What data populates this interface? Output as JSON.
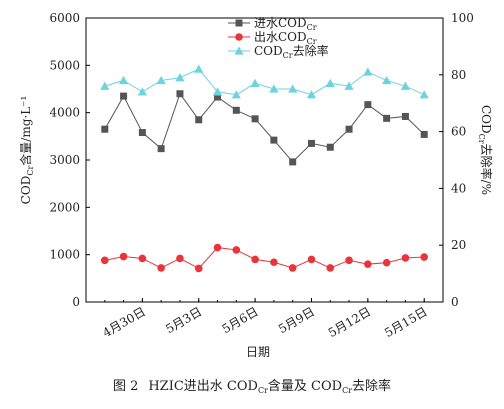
{
  "caption": {
    "prefix": "图 2",
    "text_a": "HZIC进出水 COD",
    "sub_a": "Cr",
    "text_b": "含量及 COD",
    "sub_b": "Cr",
    "text_c": "去除率"
  },
  "chart_data": {
    "type": "line",
    "xlabel": "日期",
    "ylabel_left": {
      "main": "COD",
      "sub": "Cr",
      "rest": "含量/mg·L⁻¹"
    },
    "ylabel_right": {
      "main": "COD",
      "sub": "Cr",
      "rest": "去除率/%"
    },
    "ylim_left": [
      0,
      6000
    ],
    "ylim_right": [
      0,
      100
    ],
    "yticks_left": [
      "0",
      "1000",
      "2000",
      "3000",
      "4000",
      "5000",
      "6000"
    ],
    "yticks_right": [
      "0",
      "20",
      "40",
      "60",
      "80",
      "100"
    ],
    "xlim": [
      0,
      19
    ],
    "x_tick_labels": [
      {
        "x": 3,
        "label": "4月30日"
      },
      {
        "x": 6,
        "label": "5月3日"
      },
      {
        "x": 9,
        "label": "5月6日"
      },
      {
        "x": 12,
        "label": "5月9日"
      },
      {
        "x": 15,
        "label": "5月12日"
      },
      {
        "x": 18,
        "label": "5月15日"
      }
    ],
    "x": [
      1,
      2,
      3,
      4,
      5,
      6,
      7,
      8,
      9,
      10,
      11,
      12,
      13,
      14,
      15,
      16,
      17,
      18
    ],
    "series": [
      {
        "name": "进水COD",
        "name_sub": "Cr",
        "axis": "left",
        "marker": "square",
        "color": "#555555",
        "values": [
          3650,
          4350,
          3580,
          3240,
          4400,
          3850,
          4330,
          4050,
          3870,
          3420,
          2960,
          3350,
          3270,
          3650,
          4170,
          3880,
          3920,
          3540
        ]
      },
      {
        "name": "出水COD",
        "name_sub": "Cr",
        "axis": "left",
        "marker": "circle",
        "color": "#e8343a",
        "values": [
          880,
          960,
          920,
          720,
          920,
          710,
          1150,
          1100,
          900,
          840,
          720,
          900,
          720,
          880,
          800,
          830,
          930,
          950
        ]
      },
      {
        "name": "COD",
        "name_sub": "Cr",
        "name_rest": "去除率",
        "axis": "right",
        "marker": "triangle",
        "color": "#6fd3df",
        "values": [
          76,
          78,
          74,
          78,
          79,
          82,
          74,
          73,
          77,
          75,
          75,
          73,
          77,
          76,
          81,
          78,
          76,
          73
        ]
      }
    ],
    "legend_position": "top-center"
  }
}
